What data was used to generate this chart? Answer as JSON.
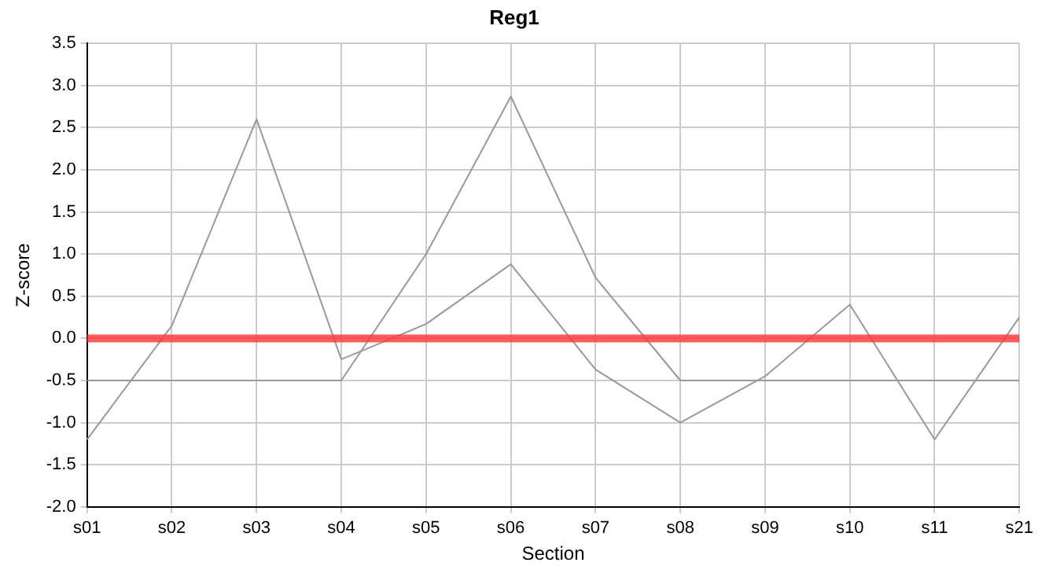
{
  "chart_data": {
    "type": "line",
    "title": "Reg1",
    "xlabel": "Section",
    "ylabel": "Z-score",
    "categories": [
      "s01",
      "s02",
      "s03",
      "s04",
      "s05",
      "s06",
      "s07",
      "s08",
      "s09",
      "s10",
      "s11",
      "s21"
    ],
    "series": [
      {
        "color": "#999999",
        "values": [
          -0.5,
          -0.5,
          -0.5,
          -0.5,
          1.0,
          2.87,
          0.72,
          -0.5,
          -0.5,
          -0.5,
          -0.5,
          -0.5
        ]
      },
      {
        "color": "#999999",
        "values": [
          -1.2,
          0.15,
          2.6,
          -0.25,
          0.17,
          0.88,
          -0.37,
          -1.0,
          -0.45,
          0.4,
          -1.2,
          0.25
        ]
      }
    ],
    "ylim": [
      -2,
      3.5
    ],
    "yticks": [
      {
        "value": -2,
        "label": "-2.0"
      },
      {
        "value": -1.5,
        "label": "-1.5"
      },
      {
        "value": -1,
        "label": "-1.0"
      },
      {
        "value": -0.5,
        "label": "-0.5"
      },
      {
        "value": 0,
        "label": "0.0"
      },
      {
        "value": 0.5,
        "label": "0.5"
      },
      {
        "value": 1,
        "label": "1.0"
      },
      {
        "value": 1.5,
        "label": "1.5"
      },
      {
        "value": 2,
        "label": "2.0"
      },
      {
        "value": 2.5,
        "label": "2.5"
      },
      {
        "value": 3,
        "label": "3.0"
      },
      {
        "value": 3.5,
        "label": "3.5"
      }
    ],
    "ref_lines": [
      {
        "axis": "y",
        "value": 0,
        "color": "#ff3333"
      }
    ],
    "grid": true,
    "legend": false,
    "marker": "none",
    "line_style": "solid"
  }
}
